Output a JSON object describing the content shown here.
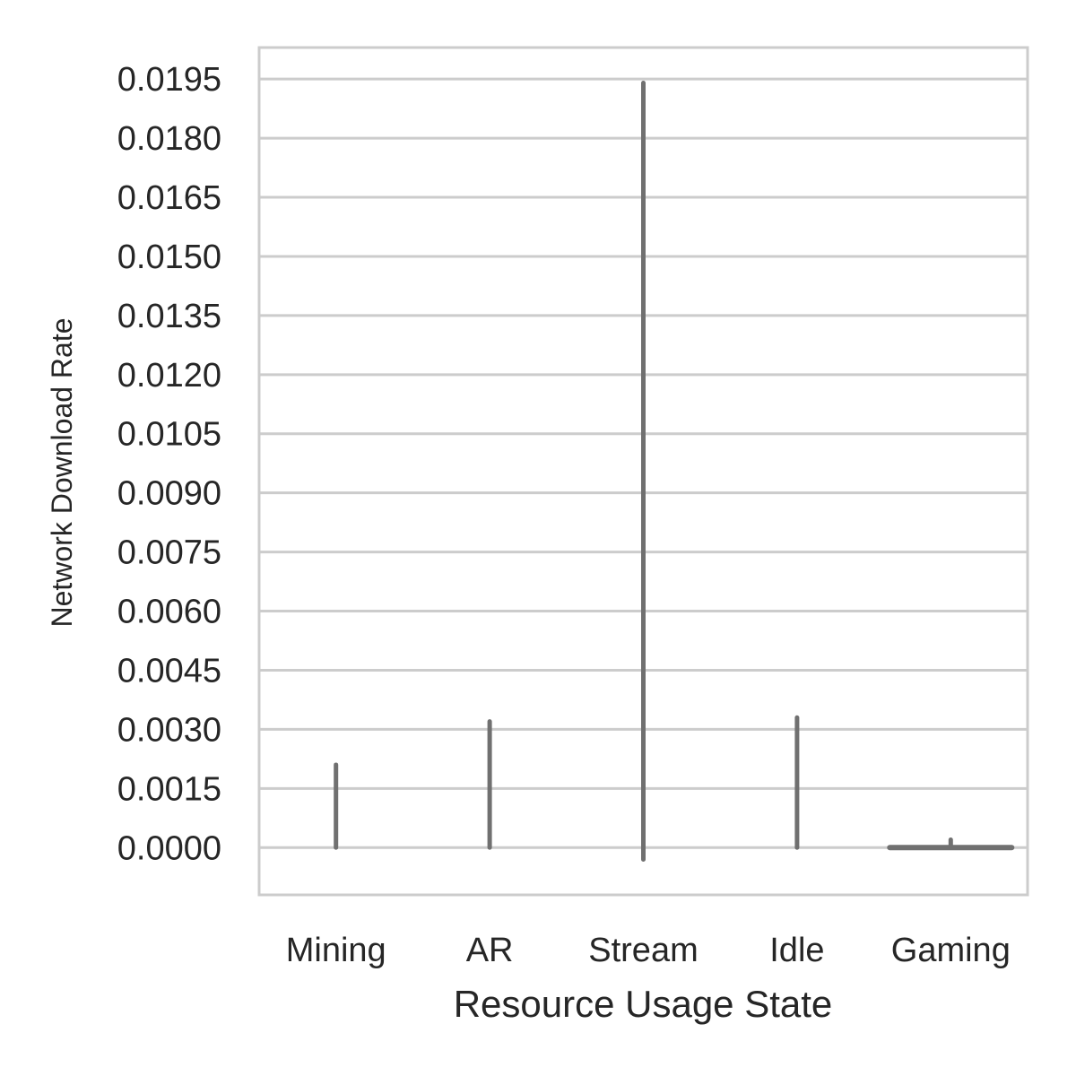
{
  "chart_data": {
    "type": "violin",
    "xlabel": "Resource Usage State",
    "ylabel": "Network Download Rate",
    "categories": [
      "Mining",
      "AR",
      "Stream",
      "Idle",
      "Gaming"
    ],
    "y_ticks": [
      "0.0000",
      "0.0015",
      "0.0030",
      "0.0045",
      "0.0060",
      "0.0075",
      "0.0090",
      "0.0105",
      "0.0120",
      "0.0135",
      "0.0150",
      "0.0165",
      "0.0180",
      "0.0195"
    ],
    "ylim": [
      -0.0012,
      0.0203
    ],
    "grid": true,
    "series_color": "#707070",
    "ranges": [
      {
        "category": "Mining",
        "min": 0.0,
        "max": 0.0021
      },
      {
        "category": "AR",
        "min": 0.0,
        "max": 0.0032
      },
      {
        "category": "Stream",
        "min": -0.0003,
        "max": 0.0194
      },
      {
        "category": "Idle",
        "min": 0.0,
        "max": 0.0033
      },
      {
        "category": "Gaming",
        "min": 0.0,
        "max": 0.0002
      }
    ]
  }
}
